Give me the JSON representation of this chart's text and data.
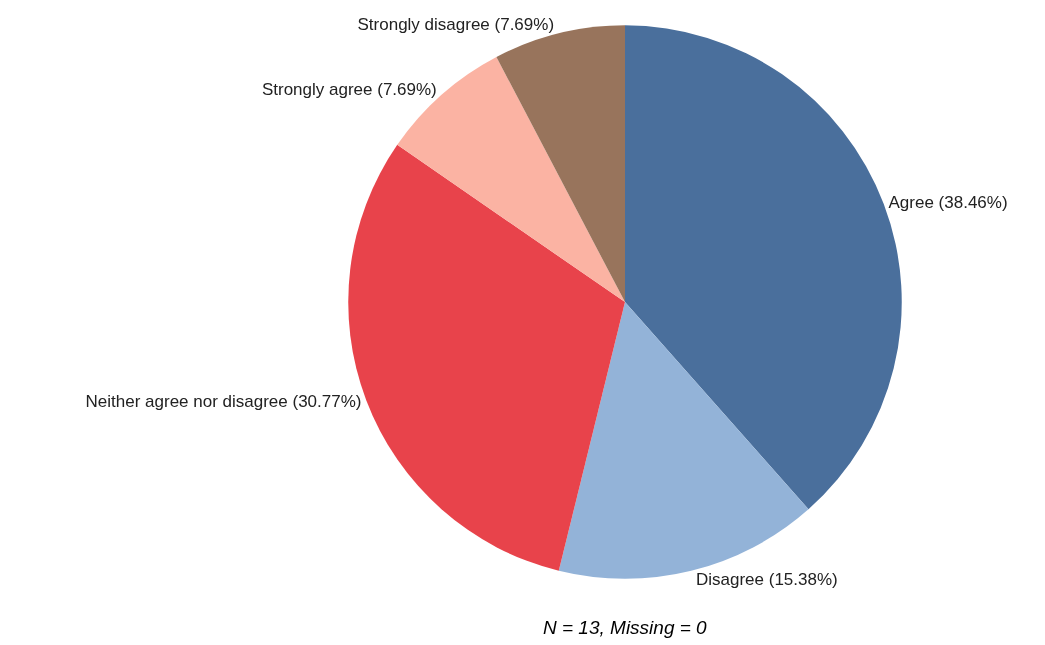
{
  "chart_data": {
    "type": "pie",
    "categories": [
      "Agree (38.46%)",
      "Disagree (15.38%)",
      "Neither agree nor disagree (30.77%)",
      "Strongly agree (7.69%)",
      "Strongly disagree (7.69%)"
    ],
    "values": [
      38.46,
      15.38,
      30.77,
      7.69,
      7.69
    ],
    "colors": [
      "#4a6f9c",
      "#93b3d8",
      "#e8434b",
      "#fbb3a3",
      "#98745c"
    ],
    "annotations": [
      "N = 13, Missing = 0"
    ],
    "legend": false
  }
}
